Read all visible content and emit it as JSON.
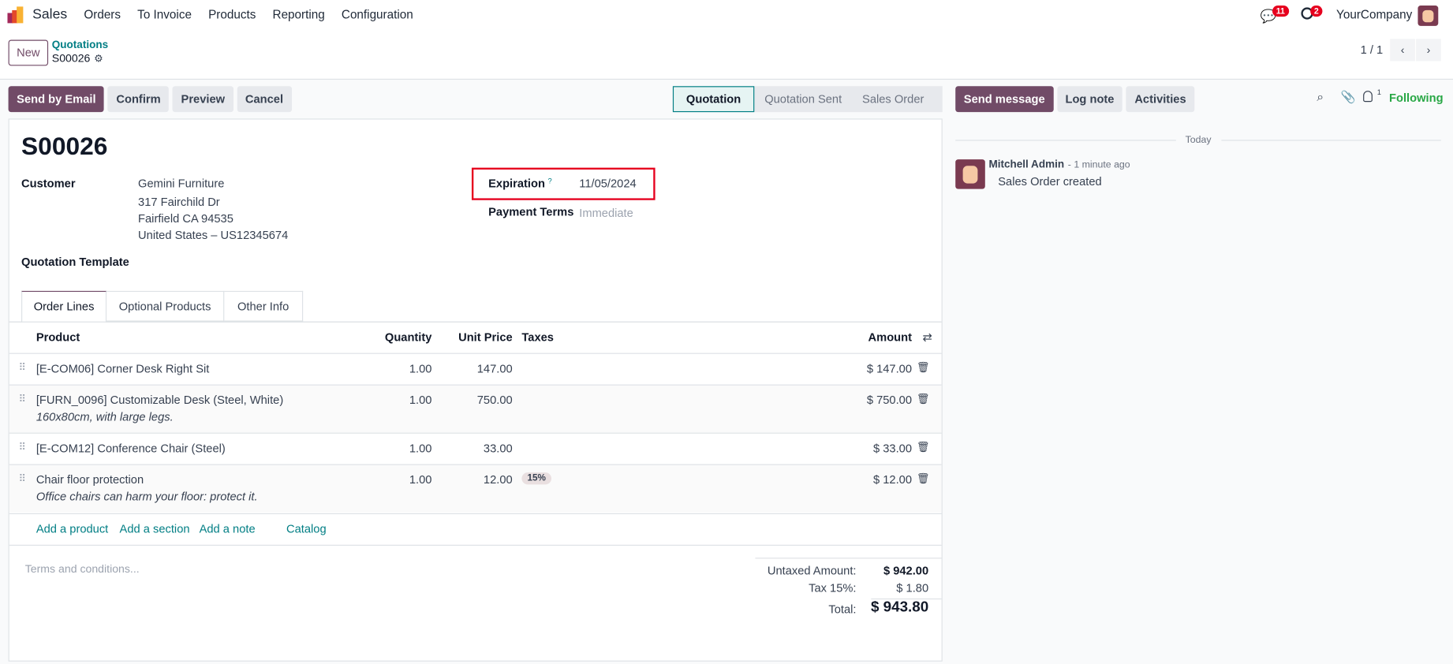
{
  "navbar": {
    "app": "Sales",
    "menu": [
      "Orders",
      "To Invoice",
      "Products",
      "Reporting",
      "Configuration"
    ],
    "messages_count": "11",
    "activities_count": "2",
    "company": "YourCompany"
  },
  "control_panel": {
    "new_label": "New",
    "breadcrumb_parent": "Quotations",
    "record": "S00026",
    "pager": "1 / 1"
  },
  "actions": {
    "send_email": "Send by Email",
    "confirm": "Confirm",
    "preview": "Preview",
    "cancel": "Cancel"
  },
  "status": {
    "stages": [
      "Quotation",
      "Quotation Sent",
      "Sales Order"
    ],
    "active": "Quotation"
  },
  "form": {
    "title": "S00026",
    "customer_label": "Customer",
    "customer_lines": [
      "Gemini Furniture",
      "317 Fairchild Dr",
      "Fairfield CA 94535",
      "United States – US12345674"
    ],
    "expiration_label": "Expiration",
    "expiration_help": "?",
    "expiration": "11/05/2024",
    "payment_terms_label": "Payment Terms",
    "payment_terms": "Immediate",
    "template_label": "Quotation Template",
    "highlight_color": "#e6001e"
  },
  "tabs": [
    "Order Lines",
    "Optional Products",
    "Other Info"
  ],
  "table": {
    "headers": {
      "product": "Product",
      "quantity": "Quantity",
      "unit_price": "Unit Price",
      "taxes": "Taxes",
      "amount": "Amount"
    },
    "rows": [
      {
        "product": "[E-COM06] Corner Desk Right Sit",
        "note": "",
        "qty": "1.00",
        "price": "147.00",
        "tax": "",
        "amount": "$ 147.00"
      },
      {
        "product": "[FURN_0096] Customizable Desk (Steel, White)",
        "note": "160x80cm, with large legs.",
        "qty": "1.00",
        "price": "750.00",
        "tax": "",
        "amount": "$ 750.00"
      },
      {
        "product": "[E-COM12] Conference Chair (Steel)",
        "note": "",
        "qty": "1.00",
        "price": "33.00",
        "tax": "",
        "amount": "$ 33.00"
      },
      {
        "product": "Chair floor protection",
        "note": "Office chairs can harm your floor: protect it.",
        "qty": "1.00",
        "price": "12.00",
        "tax": "15%",
        "amount": "$ 12.00"
      }
    ],
    "add_links": [
      "Add a product",
      "Add a section",
      "Add a note",
      "Catalog"
    ]
  },
  "terms_placeholder": "Terms and conditions...",
  "totals": {
    "untaxed_label": "Untaxed Amount:",
    "untaxed": "$ 942.00",
    "tax_label": "Tax 15%:",
    "tax": "$ 1.80",
    "total_label": "Total:",
    "total": "$ 943.80"
  },
  "chatter": {
    "send_message": "Send message",
    "log_note": "Log note",
    "activities": "Activities",
    "followers_count": "1",
    "following": "Following",
    "date_sep": "Today",
    "author": "Mitchell Admin",
    "time": "- 1 minute ago",
    "message": "Sales Order created"
  }
}
